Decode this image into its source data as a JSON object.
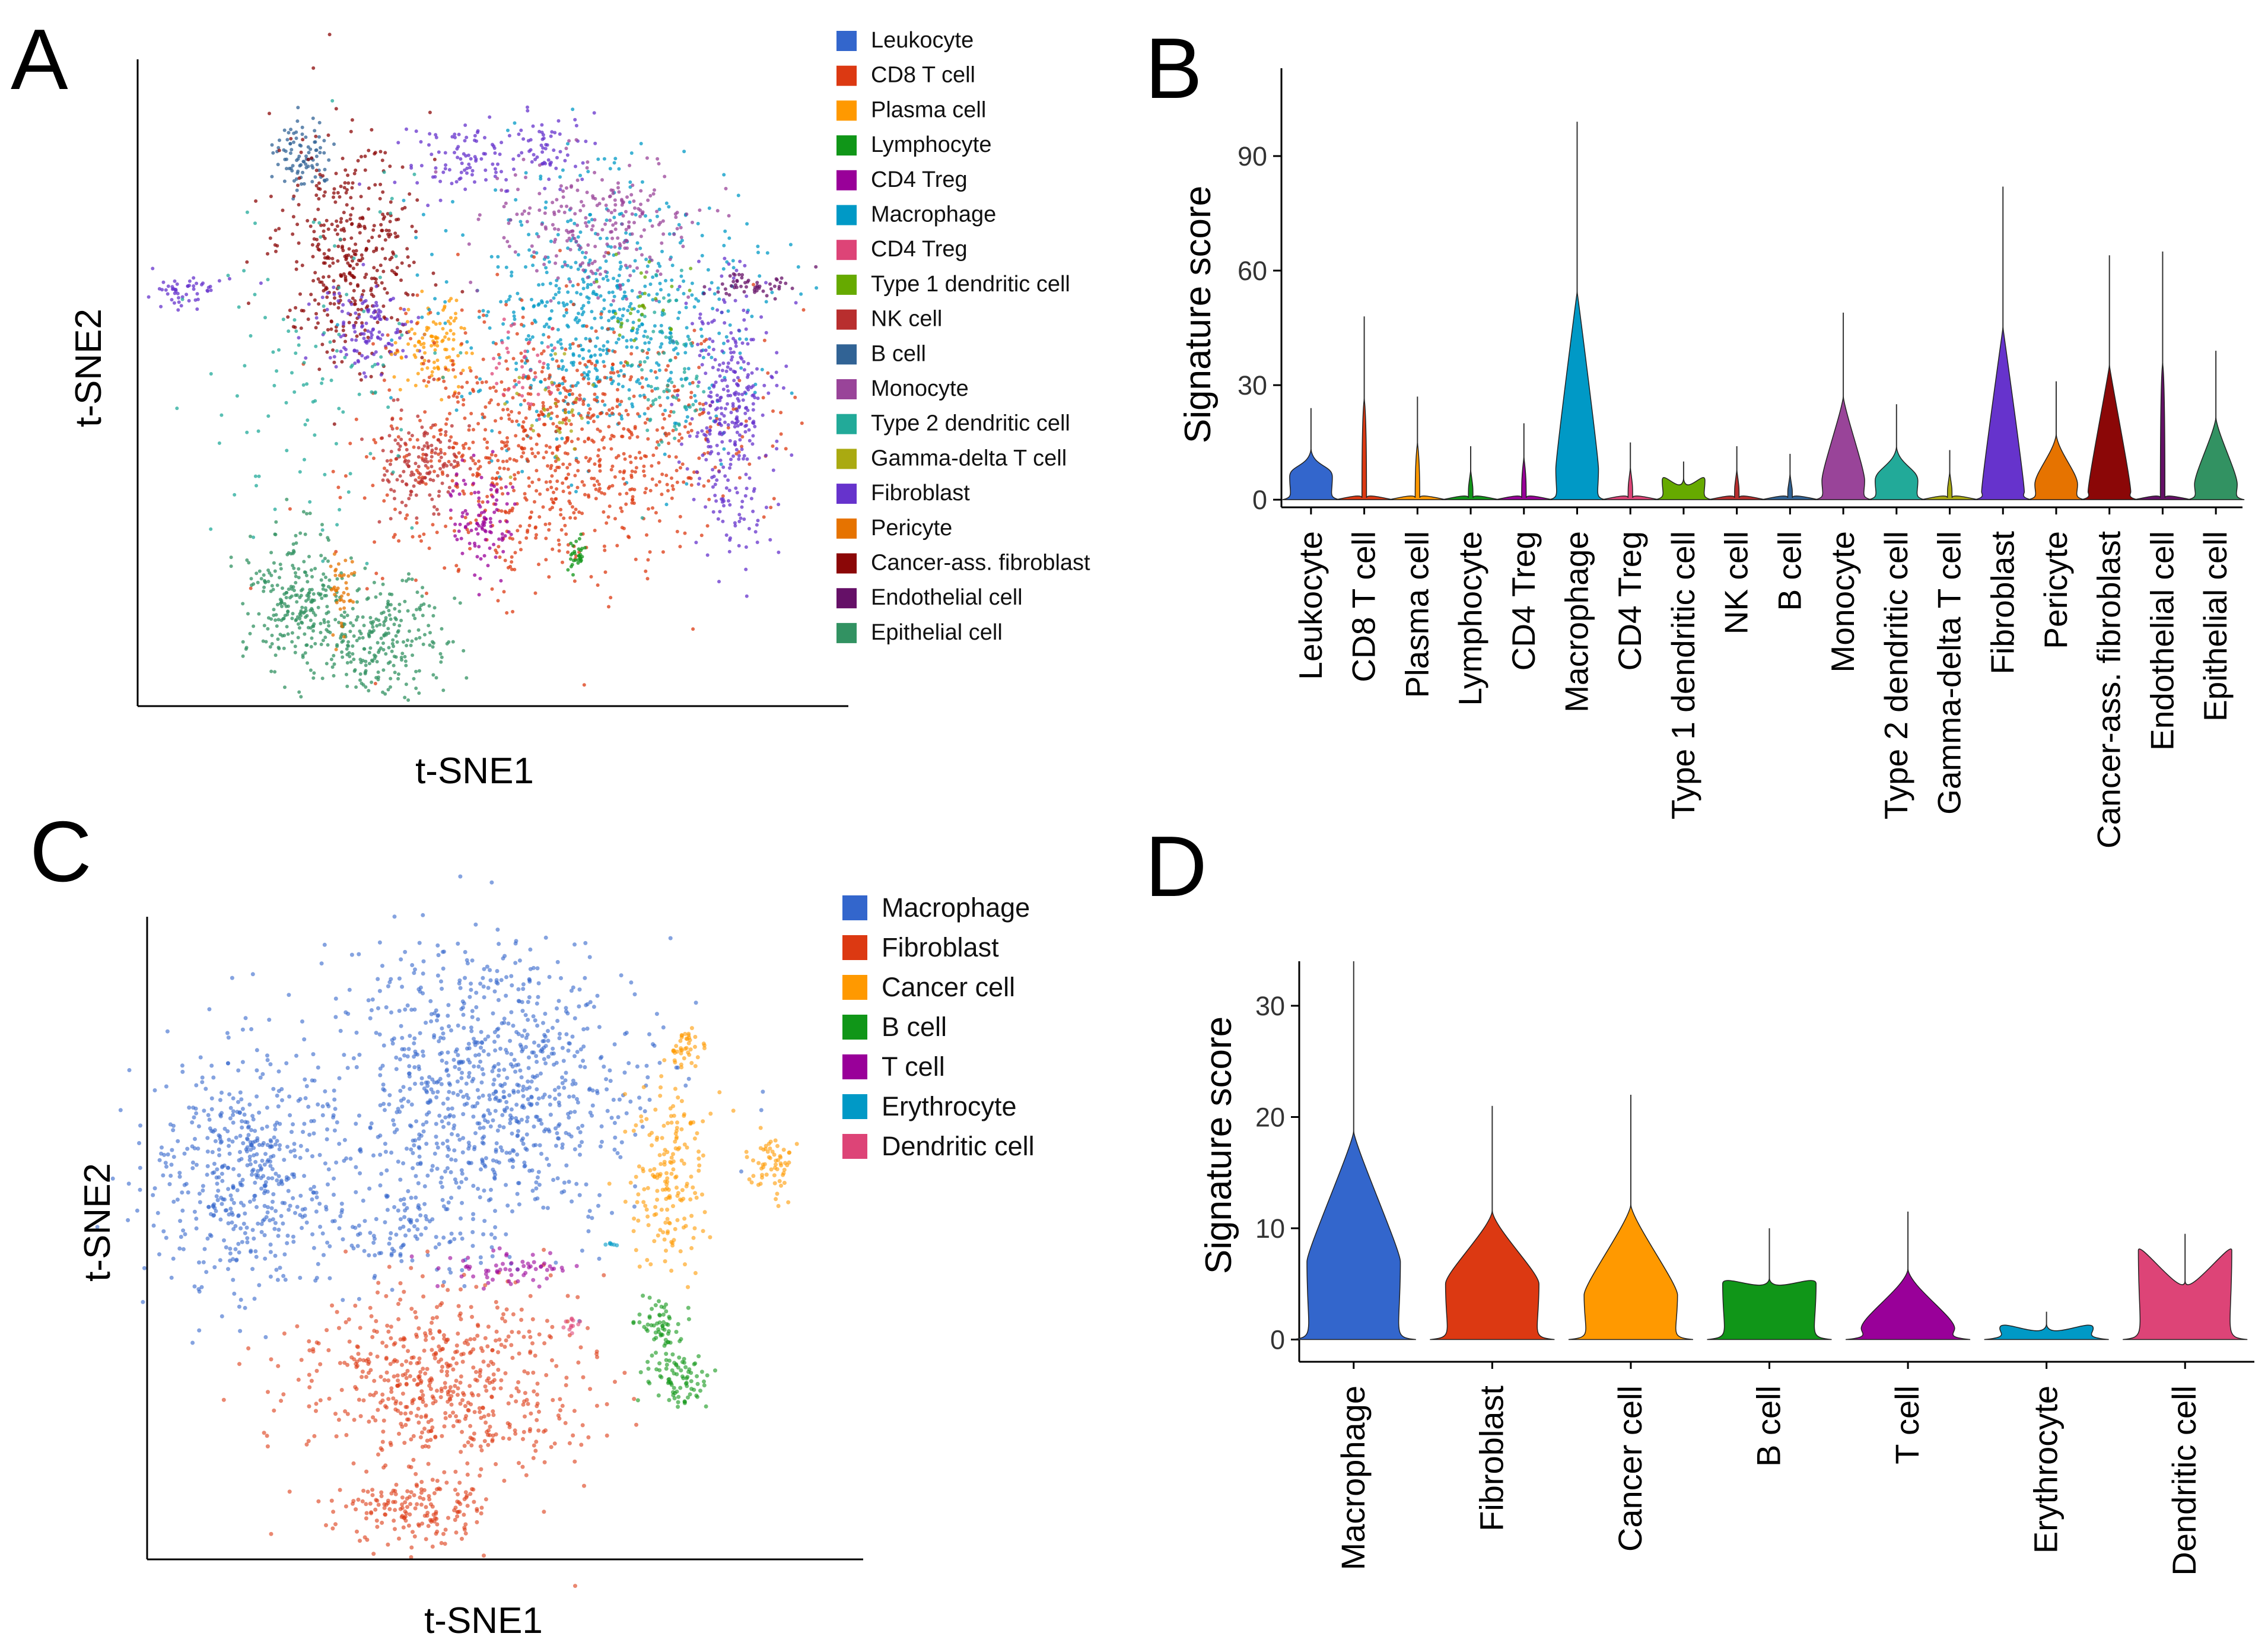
{
  "panels": {
    "A": {
      "letter": "A",
      "xlabel": "t-SNE1",
      "ylabel": "t-SNE2"
    },
    "B": {
      "letter": "B"
    },
    "C": {
      "letter": "C",
      "xlabel": "t-SNE1",
      "ylabel": "t-SNE2"
    },
    "D": {
      "letter": "D"
    }
  },
  "legend_a": [
    {
      "label": "Leukocyte",
      "color": "#3366cc"
    },
    {
      "label": "CD8 T cell",
      "color": "#dc3912"
    },
    {
      "label": "Plasma cell",
      "color": "#ff9900"
    },
    {
      "label": "Lymphocyte",
      "color": "#109618"
    },
    {
      "label": "CD4 Treg",
      "color": "#990099"
    },
    {
      "label": "Macrophage",
      "color": "#0099c6"
    },
    {
      "label": "CD4 Treg",
      "color": "#dd4477"
    },
    {
      "label": "Type 1 dendritic cell",
      "color": "#66aa00"
    },
    {
      "label": "NK cell",
      "color": "#b82e2e"
    },
    {
      "label": "B cell",
      "color": "#316395"
    },
    {
      "label": "Monocyte",
      "color": "#994499"
    },
    {
      "label": "Type 2 dendritic cell",
      "color": "#22aa99"
    },
    {
      "label": "Gamma-delta T cell",
      "color": "#aaaa11"
    },
    {
      "label": "Fibroblast",
      "color": "#6633cc"
    },
    {
      "label": "Pericyte",
      "color": "#e67300"
    },
    {
      "label": "Cancer-ass. fibroblast",
      "color": "#8b0707"
    },
    {
      "label": "Endothelial cell",
      "color": "#651067"
    },
    {
      "label": "Epithelial cell",
      "color": "#329262"
    }
  ],
  "legend_c": [
    {
      "label": "Macrophage",
      "color": "#3366cc"
    },
    {
      "label": "Fibroblast",
      "color": "#dc3912"
    },
    {
      "label": "Cancer cell",
      "color": "#ff9900"
    },
    {
      "label": "B cell",
      "color": "#109618"
    },
    {
      "label": "T cell",
      "color": "#990099"
    },
    {
      "label": "Erythrocyte",
      "color": "#0099c6"
    },
    {
      "label": "Dendritic cell",
      "color": "#dd4477"
    }
  ],
  "chart_data": [
    {
      "id": "A",
      "type": "scatter",
      "title": "",
      "xlabel": "t-SNE1",
      "ylabel": "t-SNE2",
      "note": "t-SNE embedding colored by cell type (see legend_a); individual points not quantified"
    },
    {
      "id": "B",
      "type": "violin",
      "title": "",
      "xlabel": "",
      "ylabel": "Signature score",
      "ylim": [
        -2,
        113
      ],
      "yticks": [
        0,
        30,
        60,
        90
      ],
      "categories": [
        "Leukocyte",
        "CD8 T cell",
        "Plasma cell",
        "Lymphocyte",
        "CD4 Treg",
        "Macrophage",
        "CD4 Treg",
        "Type 1 dendritic cell",
        "NK cell",
        "B cell",
        "Monocyte",
        "Type 2 dendritic cell",
        "Gamma-delta T cell",
        "Fibroblast",
        "Pericyte",
        "Cancer-ass. fibroblast",
        "Endothelial cell",
        "Epithelial cell"
      ],
      "colors": [
        "#3366cc",
        "#dc3912",
        "#ff9900",
        "#109618",
        "#990099",
        "#0099c6",
        "#dd4477",
        "#66aa00",
        "#b82e2e",
        "#316395",
        "#994499",
        "#22aa99",
        "#aaaa11",
        "#6633cc",
        "#e67300",
        "#8b0707",
        "#651067",
        "#329262"
      ],
      "max_values": [
        24,
        48,
        27,
        14,
        20,
        99,
        15,
        10,
        14,
        12,
        49,
        25,
        13,
        82,
        31,
        64,
        65,
        39
      ],
      "peak_values": [
        6,
        0,
        0,
        0,
        0,
        8,
        0,
        5,
        0,
        0,
        5,
        5,
        0,
        2,
        4,
        2,
        0,
        4
      ]
    },
    {
      "id": "C",
      "type": "scatter",
      "title": "",
      "xlabel": "t-SNE1",
      "ylabel": "t-SNE2",
      "note": "t-SNE embedding colored by cell type (see legend_c); individual points not quantified"
    },
    {
      "id": "D",
      "type": "violin",
      "title": "",
      "xlabel": "",
      "ylabel": "Signature score",
      "ylim": [
        -2,
        34
      ],
      "yticks": [
        0,
        10,
        20,
        30
      ],
      "categories": [
        "Macrophage",
        "Fibroblast",
        "Cancer cell",
        "B cell",
        "T cell",
        "Erythrocyte",
        "Dendritic cell"
      ],
      "colors": [
        "#3366cc",
        "#dc3912",
        "#ff9900",
        "#109618",
        "#990099",
        "#0099c6",
        "#dd4477"
      ],
      "max_values": [
        34,
        21,
        22,
        10,
        11.5,
        2.5,
        9.5
      ],
      "peak_values": [
        7,
        5,
        4,
        5,
        1,
        1,
        8
      ]
    }
  ]
}
